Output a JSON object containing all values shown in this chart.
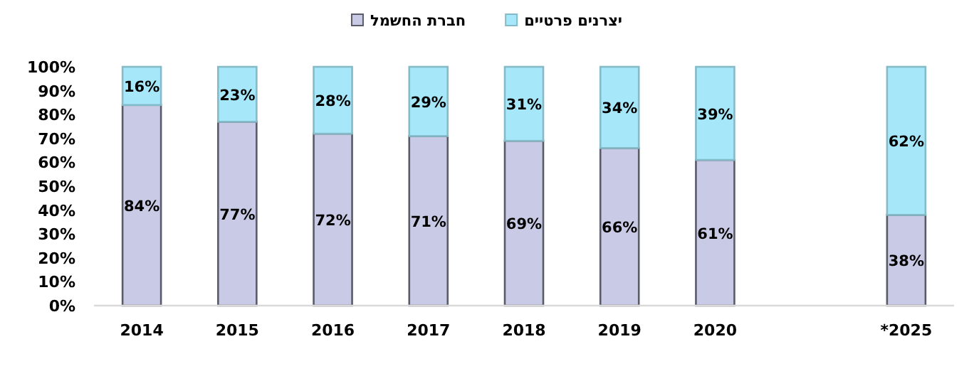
{
  "chart_data": {
    "type": "bar",
    "stacked": true,
    "legend": "top",
    "grid": false,
    "categories": [
      "2014",
      "2015",
      "2016",
      "2017",
      "2018",
      "2019",
      "2020",
      null,
      "*2025"
    ],
    "series": [
      {
        "name": "חברת החשמל",
        "color": "#c9cbe6",
        "values": [
          84,
          77,
          72,
          71,
          69,
          66,
          61,
          null,
          38
        ],
        "value_labels": [
          "84%",
          "77%",
          "72%",
          "71%",
          "69%",
          "66%",
          "61%",
          null,
          "38%"
        ]
      },
      {
        "name": "יצרנים פרטיים",
        "color": "#a6e8fa",
        "values": [
          16,
          23,
          28,
          29,
          31,
          34,
          39,
          null,
          62
        ],
        "value_labels": [
          "16%",
          "23%",
          "28%",
          "29%",
          "31%",
          "34%",
          "39%",
          null,
          "62%"
        ]
      }
    ],
    "ylim": [
      0,
      100
    ],
    "yticks": [
      {
        "value": 0,
        "label": "0%"
      },
      {
        "value": 10,
        "label": "10%"
      },
      {
        "value": 20,
        "label": "20%"
      },
      {
        "value": 30,
        "label": "30%"
      },
      {
        "value": 40,
        "label": "40%"
      },
      {
        "value": 50,
        "label": "50%"
      },
      {
        "value": 60,
        "label": "60%"
      },
      {
        "value": 70,
        "label": "70%"
      },
      {
        "value": 80,
        "label": "80%"
      },
      {
        "value": 90,
        "label": "90%"
      },
      {
        "value": 100,
        "label": "100%"
      }
    ]
  }
}
